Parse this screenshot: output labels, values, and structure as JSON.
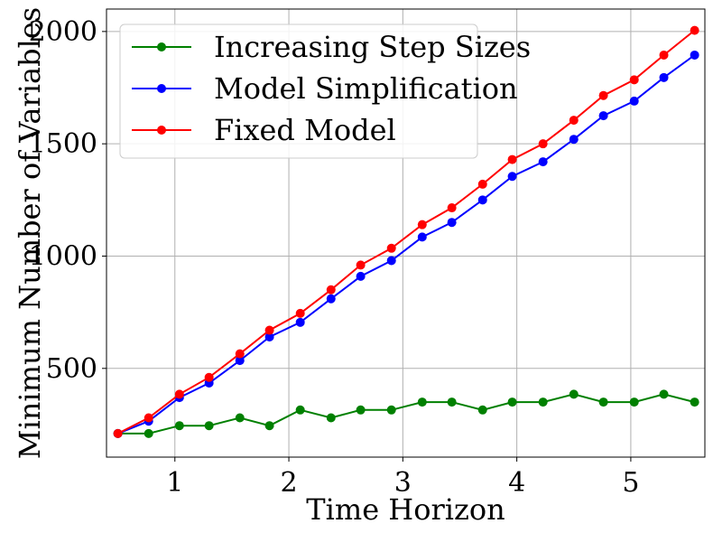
{
  "chart_data": {
    "type": "line",
    "title": "",
    "xlabel": "Time Horizon",
    "ylabel": "Minimum Number of Variables",
    "xlim": [
      0.4,
      5.65
    ],
    "ylim": [
      105,
      2100
    ],
    "xticks": [
      1,
      2,
      3,
      4,
      5
    ],
    "yticks": [
      500,
      1000,
      1500,
      2000
    ],
    "grid": true,
    "legend_position": "upper-left",
    "x": [
      0.5,
      0.77,
      1.04,
      1.3,
      1.57,
      1.83,
      2.1,
      2.37,
      2.63,
      2.9,
      3.17,
      3.43,
      3.7,
      3.96,
      4.23,
      4.5,
      4.76,
      5.03,
      5.29,
      5.56
    ],
    "series": [
      {
        "name": "Increasing Step Sizes",
        "color": "#008000",
        "values": [
          210,
          210,
          245,
          245,
          280,
          245,
          315,
          280,
          315,
          315,
          350,
          350,
          315,
          350,
          350,
          385,
          350,
          350,
          385,
          350
        ]
      },
      {
        "name": "Model Simplification",
        "color": "#0000ff",
        "values": [
          210,
          265,
          370,
          435,
          535,
          640,
          705,
          810,
          910,
          980,
          1085,
          1150,
          1250,
          1355,
          1420,
          1520,
          1625,
          1690,
          1795,
          1895
        ]
      },
      {
        "name": "Fixed Model",
        "color": "#ff0000",
        "values": [
          210,
          280,
          385,
          460,
          565,
          670,
          745,
          850,
          960,
          1035,
          1140,
          1215,
          1320,
          1430,
          1500,
          1605,
          1715,
          1785,
          1895,
          2005
        ]
      }
    ]
  }
}
